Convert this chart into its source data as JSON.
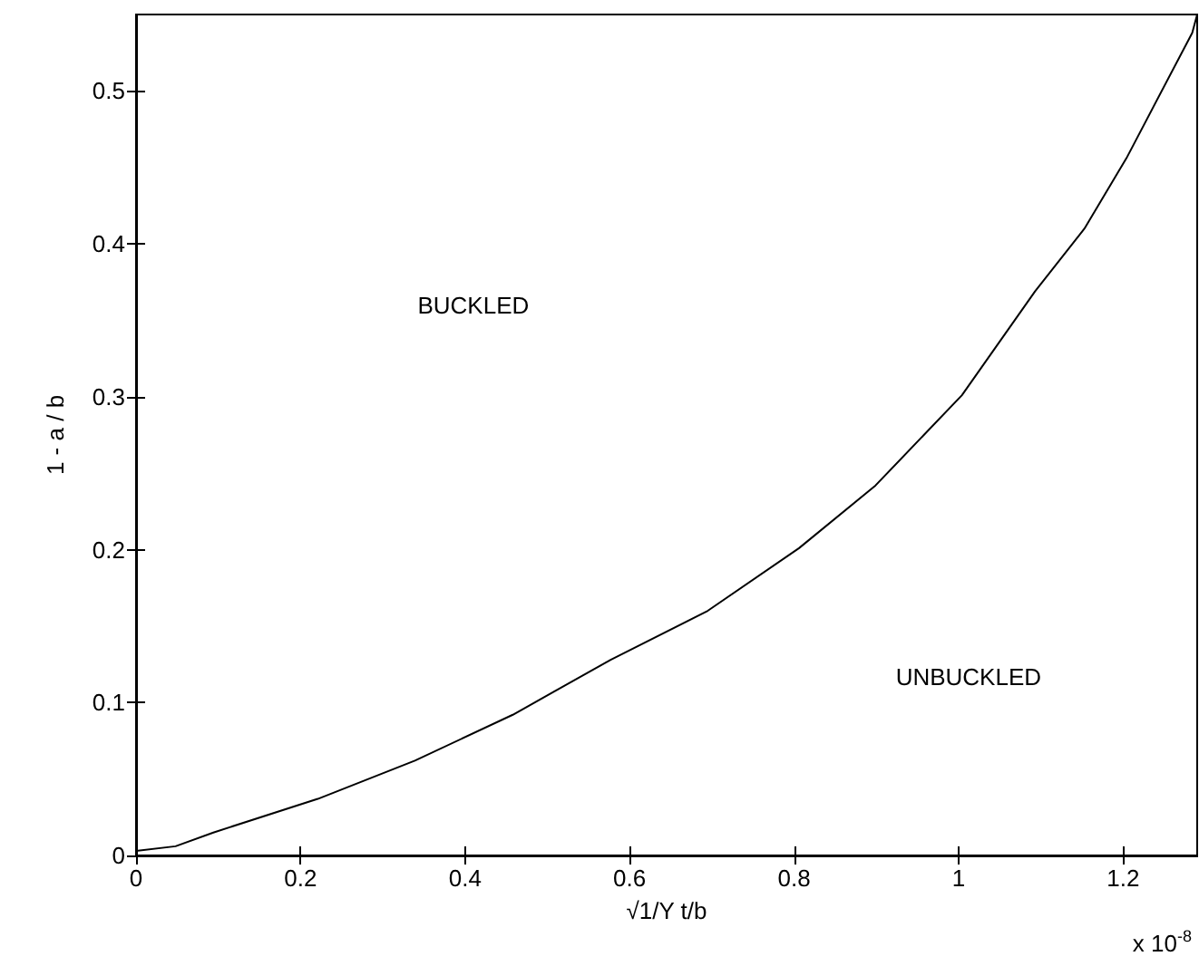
{
  "chart_data": {
    "type": "line",
    "xlabel": "√1/Y t/b",
    "ylabel": "1 - a / b",
    "annotations": [
      "BUCKLED",
      "UNBUCKLED",
      "x 10$^{-8}$"
    ],
    "series": [
      {
        "color": "#000000",
        "x": [
          0,
          0.048,
          0.094,
          0.221,
          0.339,
          0.458,
          0.577,
          0.695,
          0.806,
          0.899,
          1.004,
          1.093,
          1.153,
          1.204,
          1.284,
          1.29
        ],
        "values": [
          0.003,
          0.006,
          0.015,
          0.037,
          0.062,
          0.092,
          0.128,
          0.16,
          0.201,
          0.242,
          0.301,
          0.369,
          0.41,
          0.456,
          0.538,
          0.55
        ]
      }
    ],
    "xlim": [
      0,
      1.29
    ],
    "xticks": [
      0,
      0.2,
      0.4,
      0.6,
      0.8,
      1,
      1.2
    ],
    "ylim": [
      0,
      0.55
    ],
    "yticks": [
      0,
      0.1,
      0.2,
      0.3,
      0.4,
      0.5
    ],
    "grid": false,
    "marker": "none",
    "line_style": "solid"
  }
}
